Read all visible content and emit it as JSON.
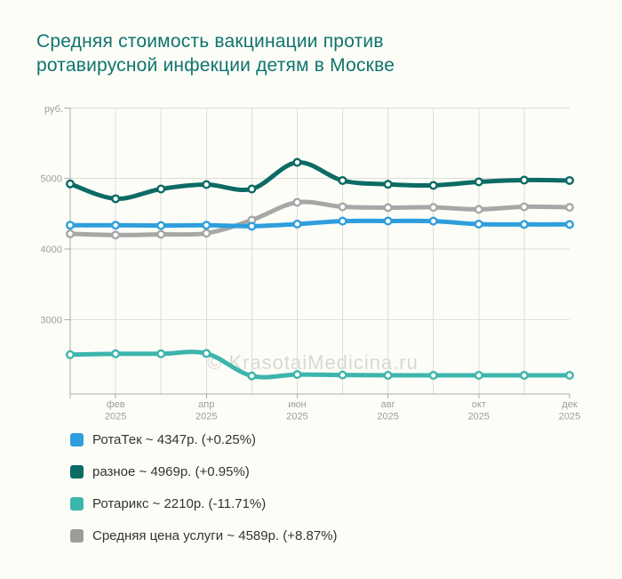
{
  "page": {
    "title": "Средняя стоимость вакцинации против ротавирусной инфекции детям в Москве",
    "watermark": "© KrasotaiMedicina.ru",
    "background_color": "#FDFDF8",
    "title_color": "#0F746D"
  },
  "chart_data": {
    "type": "line",
    "title": "Средняя стоимость вакцинации против ротавирусной инфекции детям в Москве",
    "y_unit": "руб.",
    "y_ticks": [
      5000,
      4000,
      3000
    ],
    "ylim": [
      1945,
      5985
    ],
    "grid": true,
    "smooth_lines": true,
    "n_points": 12,
    "x_ticks": [
      {
        "index": 1,
        "label": "фев",
        "year": "2025"
      },
      {
        "index": 3,
        "label": "апр",
        "year": "2025"
      },
      {
        "index": 5,
        "label": "июн",
        "year": "2025"
      },
      {
        "index": 7,
        "label": "авг",
        "year": "2025"
      },
      {
        "index": 9,
        "label": "окт",
        "year": "2025"
      },
      {
        "index": 11,
        "label": "дек",
        "year": "2025"
      }
    ],
    "legend_position": "bottom-left",
    "series": [
      {
        "name": "РотаТек",
        "legend": "РотаТек ~ 4347р. (+0.25%)",
        "current_value": "4347р.",
        "change_percent": "+0.25%",
        "color": "#2E9EDC",
        "values": [
          4336,
          4336,
          4331,
          4336,
          4322,
          4352,
          4394,
          4396,
          4394,
          4352,
          4347,
          4347
        ]
      },
      {
        "name": "разное",
        "legend": "разное ~ 4969р. (+0.95%)",
        "current_value": "4969р.",
        "change_percent": "+0.95%",
        "color": "#0C6B64",
        "values": [
          4922,
          4711,
          4849,
          4912,
          4849,
          5226,
          4969,
          4916,
          4900,
          4950,
          4975,
          4969
        ]
      },
      {
        "name": "Ротарикс",
        "legend": "Ротарикс ~ 2210р. (-11.71%)",
        "current_value": "2210р.",
        "change_percent": "-11.71%",
        "color": "#3CB5AC",
        "values": [
          2503,
          2515,
          2515,
          2520,
          2202,
          2222,
          2215,
          2210,
          2210,
          2210,
          2210,
          2210
        ]
      },
      {
        "name": "Средняя цена услуги",
        "legend": "Средняя цена услуги ~ 4589р. (+8.87%)",
        "current_value": "4589р.",
        "change_percent": "+8.87%",
        "color": "#9C9C9C",
        "line_color": "#A7A7A7",
        "values": [
          4215,
          4197,
          4207,
          4222,
          4408,
          4660,
          4597,
          4585,
          4589,
          4560,
          4597,
          4589
        ]
      }
    ],
    "styles": {
      "grid_color": "#DCDCDC",
      "axis_color": "#ABABAB",
      "tick_label_color": "#9C9C9C",
      "watermark_color": "#D9D9D4",
      "legend_text_color": "#333333",
      "marker_fill": "#FFFFFF"
    }
  }
}
